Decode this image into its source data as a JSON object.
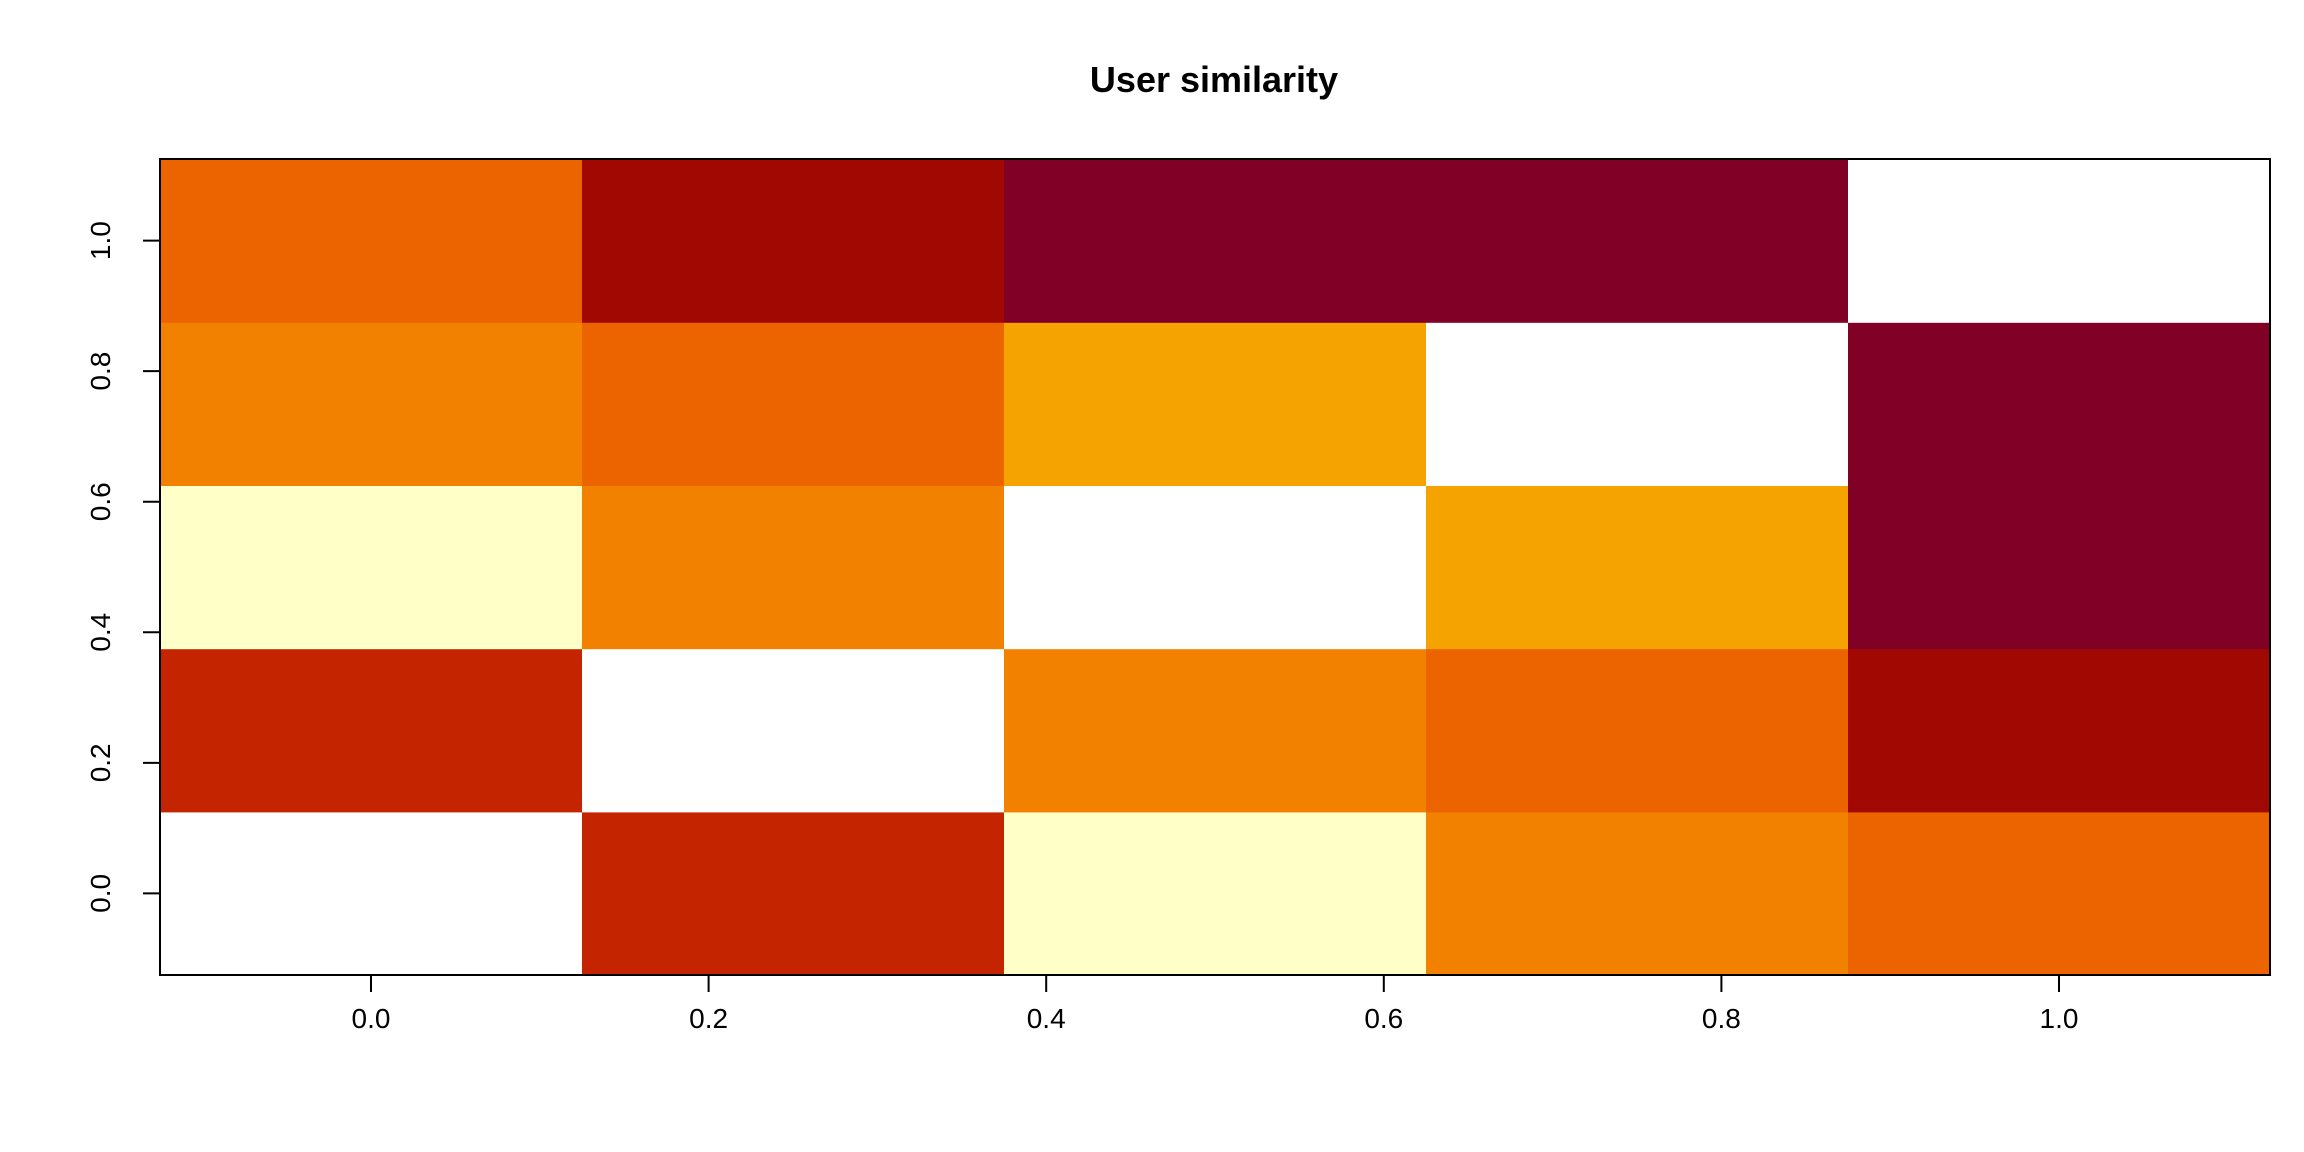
{
  "chart_data": {
    "type": "heatmap",
    "title": "User similarity",
    "xlabel": "",
    "ylabel": "",
    "x_ticks": [
      "0.0",
      "0.2",
      "0.4",
      "0.6",
      "0.8",
      "1.0"
    ],
    "y_ticks": [
      "0.0",
      "0.2",
      "0.4",
      "0.6",
      "0.8",
      "1.0"
    ],
    "x_range": [
      -0.125,
      1.125
    ],
    "y_range": [
      -0.125,
      1.125
    ],
    "columns": 5,
    "rows": 5,
    "palette": [
      "#800026",
      "#A20802",
      "#C42400",
      "#EC6400",
      "#F28100",
      "#F5A300",
      "#FFFFC8",
      "#FFFFFF"
    ],
    "cells": [
      [
        7,
        2,
        6,
        4,
        3
      ],
      [
        2,
        7,
        4,
        3,
        1
      ],
      [
        6,
        4,
        7,
        5,
        0
      ],
      [
        4,
        3,
        5,
        7,
        0
      ],
      [
        3,
        1,
        0,
        0,
        7
      ]
    ],
    "grid": false
  }
}
